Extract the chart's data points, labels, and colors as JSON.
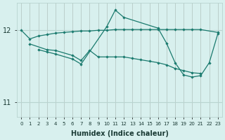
{
  "x_all": [
    0,
    1,
    2,
    3,
    4,
    5,
    6,
    7,
    8,
    9,
    10,
    11,
    12,
    13,
    14,
    15,
    16,
    17,
    18,
    19,
    20,
    21,
    22,
    23
  ],
  "line_upper": [
    12.0,
    11.88,
    11.92,
    11.94,
    11.96,
    11.97,
    11.98,
    11.99,
    11.99,
    12.0,
    12.0,
    12.01,
    12.01,
    12.01,
    12.01,
    12.01,
    12.01,
    12.01,
    12.01,
    12.01,
    12.01,
    12.01,
    null,
    11.97
  ],
  "line_mid": [
    null,
    11.81,
    null,
    11.73,
    11.72,
    null,
    11.65,
    11.58,
    11.72,
    11.63,
    11.63,
    11.63,
    11.63,
    11.61,
    11.59,
    11.57,
    11.55,
    11.52,
    11.47,
    11.44,
    11.41,
    11.4,
    null,
    null
  ],
  "line_peak": [
    null,
    null,
    11.73,
    11.7,
    11.67,
    null,
    11.6,
    11.53,
    null,
    null,
    12.05,
    12.28,
    12.18,
    null,
    null,
    null,
    12.03,
    11.82,
    11.55,
    11.38,
    11.35,
    11.37,
    11.55,
    11.95
  ],
  "ylim": [
    10.8,
    12.38
  ],
  "xlim": [
    -0.5,
    23.5
  ],
  "yticks": [
    11,
    12
  ],
  "xticks": [
    0,
    1,
    2,
    3,
    4,
    5,
    6,
    7,
    8,
    9,
    10,
    11,
    12,
    13,
    14,
    15,
    16,
    17,
    18,
    19,
    20,
    21,
    22,
    23
  ],
  "xlabel": "Humidex (Indice chaleur)",
  "line_color": "#1a7a6e",
  "bg_color": "#d8f0ee",
  "grid_color": "#b8d4d0"
}
